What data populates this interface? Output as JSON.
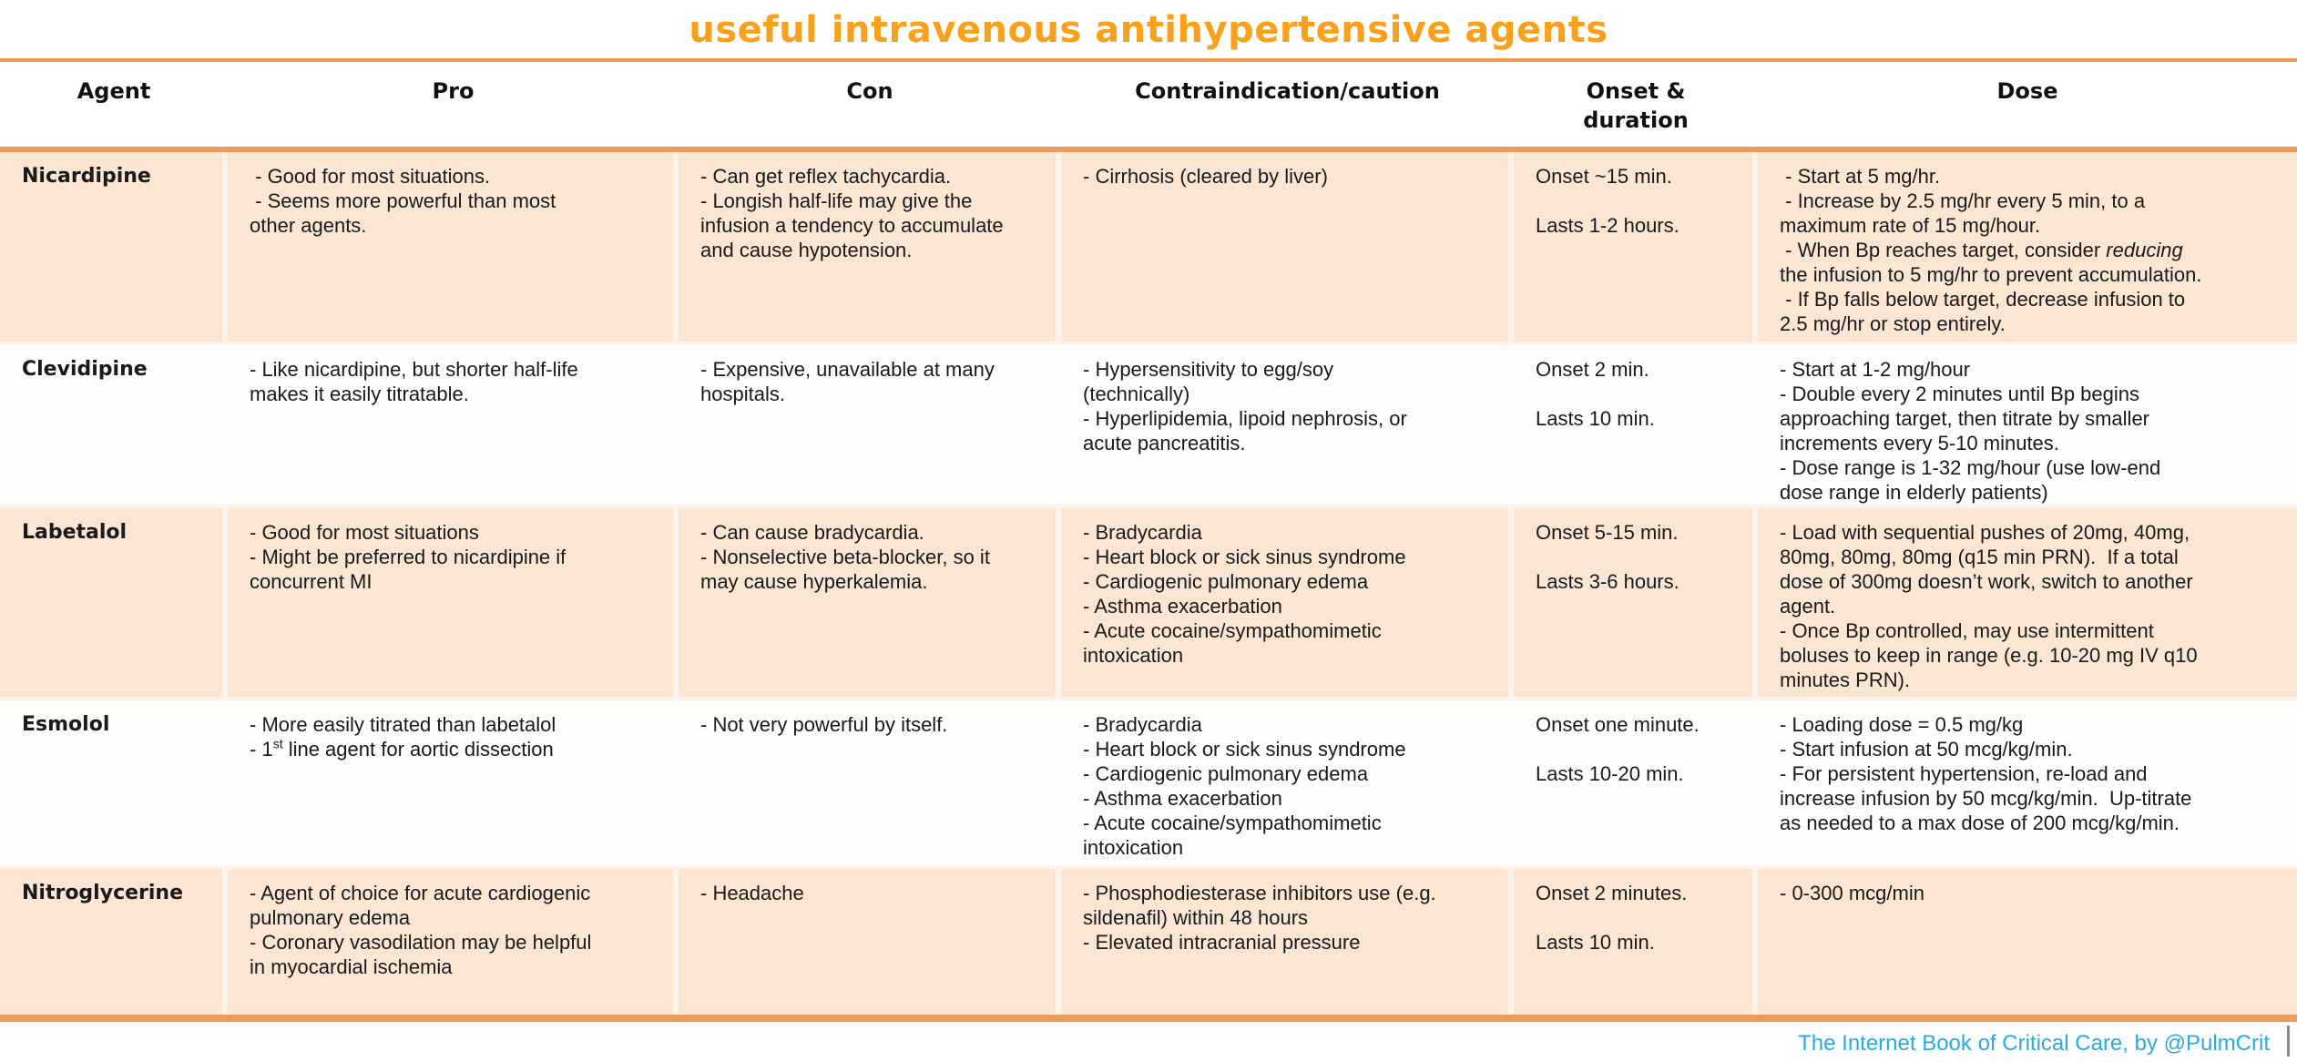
{
  "title": "useful intravenous antihypertensive agents",
  "columns": [
    "Agent",
    "Pro",
    "Con",
    "Contraindication/caution",
    "Onset &\nduration",
    "Dose"
  ],
  "rows": [
    {
      "agent": "Nicardipine",
      "pro": " - Good for most situations.\n - Seems more powerful than most\nother agents.",
      "con": "- Can get reflex tachycardia.\n- Longish half-life may give the\ninfusion a tendency to accumulate\nand cause hypotension.",
      "contraindication": "- Cirrhosis (cleared by liver)",
      "onset": "Onset ~15 min.\n\nLasts 1-2 hours.",
      "dose": " - Start at 5 mg/hr.\n - Increase by 2.5 mg/hr every 5 min, to a\nmaximum rate of 15 mg/hour.\n - When Bp reaches target, consider *reducing*\nthe infusion to 5 mg/hr to prevent accumulation.\n - If Bp falls below target, decrease infusion to\n2.5 mg/hr or stop entirely."
    },
    {
      "agent": "Clevidipine",
      "pro": "- Like nicardipine, but shorter half-life\nmakes it easily titratable.",
      "con": "- Expensive, unavailable at many\nhospitals.",
      "contraindication": "- Hypersensitivity to egg/soy\n(technically)\n- Hyperlipidemia, lipoid nephrosis, or\nacute pancreatitis.",
      "onset": "Onset 2 min.\n\nLasts 10 min.",
      "dose": "- Start at 1-2 mg/hour\n- Double every 2 minutes until Bp begins\napproaching target, then titrate by smaller\nincrements every 5-10 minutes.\n- Dose range is 1-32 mg/hour (use low-end\ndose range in elderly patients)"
    },
    {
      "agent": "Labetalol",
      "pro": "- Good for most situations\n- Might be preferred to nicardipine if\nconcurrent MI",
      "con": "- Can cause bradycardia.\n- Nonselective beta-blocker, so it\nmay cause hyperkalemia.",
      "contraindication": "- Bradycardia\n- Heart block or sick sinus syndrome\n- Cardiogenic pulmonary edema\n- Asthma exacerbation\n- Acute cocaine/sympathomimetic\nintoxication",
      "onset": "Onset 5-15 min.\n\nLasts 3-6 hours.",
      "dose": "- Load with sequential pushes of 20mg, 40mg,\n80mg, 80mg, 80mg (q15 min PRN).  If a total\ndose of 300mg doesn’t work, switch to another\nagent.\n- Once Bp controlled, may use intermittent\nboluses to keep in range (e.g. 10-20 mg IV q10\nminutes PRN)."
    },
    {
      "agent": "Esmolol",
      "pro": "- More easily titrated than labetalol\n- 1^st^ line agent for aortic dissection",
      "con": "- Not very powerful by itself.",
      "contraindication": "- Bradycardia\n- Heart block or sick sinus syndrome\n- Cardiogenic pulmonary edema\n- Asthma exacerbation\n- Acute cocaine/sympathomimetic\nintoxication",
      "onset": "Onset one minute.\n\nLasts 10-20 min.",
      "dose": "- Loading dose = 0.5 mg/kg\n- Start infusion at 50 mcg/kg/min.\n- For persistent hypertension, re-load and\nincrease infusion by 50 mcg/kg/min.  Up-titrate\nas needed to a max dose of 200 mcg/kg/min."
    },
    {
      "agent": "Nitroglycerine",
      "pro": "- Agent of choice for acute cardiogenic\npulmonary edema\n- Coronary vasodilation may be helpful\nin myocardial ischemia",
      "con": "- Headache",
      "contraindication": "- Phosphodiesterase inhibitors use (e.g.\nsildenafil) within 48 hours\n- Elevated intracranial pressure",
      "onset": "Onset 2 minutes.\n\nLasts 10 min.",
      "dose": "- 0-300 mcg/min"
    }
  ],
  "footer": "The Internet Book of Critical Care, by @PulmCrit",
  "colors": {
    "title_orange": "#F7A11C",
    "rule_orange": "#EC9C58",
    "row_peach": "#FBE5D3",
    "footer_blue": "#2CA9E1"
  }
}
